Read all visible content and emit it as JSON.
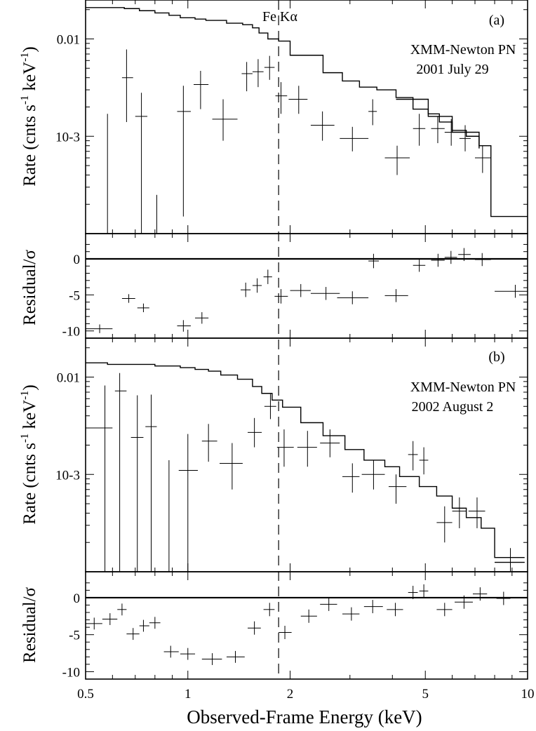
{
  "chart_data": {
    "type": "spectrum",
    "xlabel": "Observed-Frame Energy (keV)",
    "xscale": "log",
    "xlim": [
      0.5,
      10
    ],
    "xticks": [
      {
        "v": 0.5,
        "label": "0.5"
      },
      {
        "v": 1,
        "label": "1"
      },
      {
        "v": 2,
        "label": "2"
      },
      {
        "v": 5,
        "label": "5"
      },
      {
        "v": 10,
        "label": "10"
      }
    ],
    "fe_line": {
      "energy": 1.85,
      "label": "Fe Kα"
    },
    "rate_ylabel": {
      "main": "Rate (cnts s",
      "sup1": "-1",
      "mid": "  keV",
      "sup2": "-1",
      "close": ")"
    },
    "resid_ylabel": "Residual/σ",
    "rate_ylim_log10": [
      -4.0,
      -1.6
    ],
    "rate_yticks": [
      {
        "v": 0.01,
        "label": "0.01"
      },
      {
        "v": 0.001,
        "label": "10-3"
      }
    ],
    "resid_ylim": [
      -11,
      3.5
    ],
    "resid_yticks": [
      {
        "v": 0,
        "label": "0"
      },
      {
        "v": -5,
        "label": "-5"
      },
      {
        "v": -10,
        "label": "-10"
      }
    ],
    "panels": [
      {
        "id": "a",
        "panel_label": "(a)",
        "instrument": "XMM-Newton PN",
        "date": "2001 July 29",
        "model": [
          [
            0.5,
            0.021
          ],
          [
            0.65,
            0.0205
          ],
          [
            0.72,
            0.0195
          ],
          [
            0.8,
            0.0185
          ],
          [
            0.88,
            0.0175
          ],
          [
            0.95,
            0.0165
          ],
          [
            1.05,
            0.016
          ],
          [
            1.13,
            0.0155
          ],
          [
            1.3,
            0.0145
          ],
          [
            1.45,
            0.014
          ],
          [
            1.55,
            0.013
          ],
          [
            1.62,
            0.0115
          ],
          [
            1.72,
            0.01
          ],
          [
            1.85,
            0.0095
          ],
          [
            2.0,
            0.0068
          ],
          [
            2.5,
            0.0045
          ],
          [
            2.85,
            0.0037
          ],
          [
            3.2,
            0.0032
          ],
          [
            3.6,
            0.003
          ],
          [
            4.1,
            0.0025
          ],
          [
            4.6,
            0.0019
          ],
          [
            5.1,
            0.0017
          ],
          [
            5.5,
            0.0014
          ],
          [
            6.0,
            0.00115
          ],
          [
            6.6,
            0.001
          ],
          [
            7.2,
            0.0008
          ],
          [
            7.8,
            0.00015
          ],
          [
            10,
            0.00015
          ]
        ],
        "model_lower": [
          [
            4.1,
            0.0024
          ],
          [
            5.1,
            0.0016
          ],
          [
            6.0,
            0.0011
          ],
          [
            7.2,
            0.00075
          ]
        ],
        "rate_points": [
          {
            "x": 0.58,
            "xlo": 0.55,
            "xhi": 0.6,
            "y": 0.0001,
            "ylo": 0.0001,
            "yhi": 0.0017
          },
          {
            "x": 0.66,
            "xlo": 0.64,
            "xhi": 0.69,
            "y": 0.004,
            "ylo": 0.0014,
            "yhi": 0.0078
          },
          {
            "x": 0.73,
            "xlo": 0.7,
            "xhi": 0.76,
            "y": 0.0016,
            "ylo": 0.0001,
            "yhi": 0.0028
          },
          {
            "x": 0.81,
            "xlo": 0.79,
            "xhi": 0.83,
            "y": 0.0001,
            "ylo": 0.0001,
            "yhi": 0.00025
          },
          {
            "x": 0.97,
            "xlo": 0.93,
            "xhi": 1.02,
            "y": 0.0018,
            "ylo": 0.00015,
            "yhi": 0.0033
          },
          {
            "x": 1.09,
            "xlo": 1.04,
            "xhi": 1.15,
            "y": 0.0034,
            "ylo": 0.0019,
            "yhi": 0.0047
          },
          {
            "x": 1.27,
            "xlo": 1.18,
            "xhi": 1.4,
            "y": 0.0015,
            "ylo": 0.0009,
            "yhi": 0.0024
          },
          {
            "x": 1.49,
            "xlo": 1.44,
            "xhi": 1.55,
            "y": 0.0044,
            "ylo": 0.0029,
            "yhi": 0.0058
          },
          {
            "x": 1.61,
            "xlo": 1.55,
            "xhi": 1.67,
            "y": 0.0046,
            "ylo": 0.0032,
            "yhi": 0.0062
          },
          {
            "x": 1.74,
            "xlo": 1.68,
            "xhi": 1.8,
            "y": 0.0051,
            "ylo": 0.0038,
            "yhi": 0.0067
          },
          {
            "x": 1.88,
            "xlo": 1.81,
            "xhi": 1.96,
            "y": 0.0026,
            "ylo": 0.0017,
            "yhi": 0.0036
          },
          {
            "x": 2.12,
            "xlo": 1.98,
            "xhi": 2.25,
            "y": 0.0024,
            "ylo": 0.0017,
            "yhi": 0.0033
          },
          {
            "x": 2.49,
            "xlo": 2.3,
            "xhi": 2.7,
            "y": 0.0013,
            "ylo": 0.0009,
            "yhi": 0.0018
          },
          {
            "x": 3.05,
            "xlo": 2.8,
            "xhi": 3.4,
            "y": 0.00095,
            "ylo": 0.0007,
            "yhi": 0.00125
          },
          {
            "x": 3.5,
            "xlo": 3.4,
            "xhi": 3.6,
            "y": 0.0018,
            "ylo": 0.0013,
            "yhi": 0.0024
          },
          {
            "x": 4.13,
            "xlo": 3.8,
            "xhi": 4.5,
            "y": 0.0006,
            "ylo": 0.0004,
            "yhi": 0.0008
          },
          {
            "x": 4.8,
            "xlo": 4.6,
            "xhi": 5.0,
            "y": 0.0012,
            "ylo": 0.0008,
            "yhi": 0.0017
          },
          {
            "x": 5.44,
            "xlo": 5.2,
            "xhi": 5.7,
            "y": 0.0012,
            "ylo": 0.00085,
            "yhi": 0.0016
          },
          {
            "x": 5.96,
            "xlo": 5.7,
            "xhi": 6.2,
            "y": 0.0011,
            "ylo": 0.0008,
            "yhi": 0.0015
          },
          {
            "x": 6.55,
            "xlo": 6.3,
            "xhi": 6.8,
            "y": 0.00095,
            "ylo": 0.0007,
            "yhi": 0.0013
          },
          {
            "x": 7.37,
            "xlo": 7.0,
            "xhi": 7.8,
            "y": 0.0006,
            "ylo": 0.00042,
            "yhi": 0.0008
          }
        ],
        "residuals": [
          {
            "x": 0.55,
            "xlo": 0.5,
            "xhi": 0.6,
            "y": -9.7,
            "err": 0.6
          },
          {
            "x": 0.67,
            "xlo": 0.64,
            "xhi": 0.7,
            "y": -5.5,
            "err": 0.6
          },
          {
            "x": 0.74,
            "xlo": 0.71,
            "xhi": 0.77,
            "y": -6.8,
            "err": 0.6
          },
          {
            "x": 0.97,
            "xlo": 0.93,
            "xhi": 1.02,
            "y": -9.3,
            "err": 0.8
          },
          {
            "x": 1.1,
            "xlo": 1.05,
            "xhi": 1.15,
            "y": -8.2,
            "err": 0.8
          },
          {
            "x": 1.48,
            "xlo": 1.43,
            "xhi": 1.53,
            "y": -4.3,
            "err": 1.0
          },
          {
            "x": 1.6,
            "xlo": 1.55,
            "xhi": 1.65,
            "y": -3.7,
            "err": 1.0
          },
          {
            "x": 1.72,
            "xlo": 1.67,
            "xhi": 1.77,
            "y": -2.5,
            "err": 1.0
          },
          {
            "x": 1.88,
            "xlo": 1.8,
            "xhi": 1.97,
            "y": -5.2,
            "err": 1.0
          },
          {
            "x": 2.15,
            "xlo": 2.0,
            "xhi": 2.3,
            "y": -4.4,
            "err": 0.9
          },
          {
            "x": 2.55,
            "xlo": 2.3,
            "xhi": 2.8,
            "y": -4.8,
            "err": 0.9
          },
          {
            "x": 3.05,
            "xlo": 2.75,
            "xhi": 3.4,
            "y": -5.4,
            "err": 0.9
          },
          {
            "x": 3.52,
            "xlo": 3.4,
            "xhi": 3.65,
            "y": -0.3,
            "err": 1.0
          },
          {
            "x": 4.1,
            "xlo": 3.8,
            "xhi": 4.45,
            "y": -5.1,
            "err": 0.9
          },
          {
            "x": 4.8,
            "xlo": 4.6,
            "xhi": 5.0,
            "y": -0.9,
            "err": 0.9
          },
          {
            "x": 5.45,
            "xlo": 5.2,
            "xhi": 5.7,
            "y": -0.2,
            "err": 0.9
          },
          {
            "x": 5.95,
            "xlo": 5.7,
            "xhi": 6.2,
            "y": 0.2,
            "err": 0.9
          },
          {
            "x": 6.5,
            "xlo": 6.25,
            "xhi": 6.8,
            "y": 0.6,
            "err": 0.9
          },
          {
            "x": 7.35,
            "xlo": 7.0,
            "xhi": 7.8,
            "y": -0.1,
            "err": 0.9
          },
          {
            "x": 9.2,
            "xlo": 8.0,
            "xhi": 10.0,
            "y": -4.5,
            "err": 0.9
          }
        ]
      },
      {
        "id": "b",
        "panel_label": "(b)",
        "instrument": "XMM-Newton PN",
        "date": "2002 August 2",
        "model": [
          [
            0.5,
            0.014
          ],
          [
            0.58,
            0.0135
          ],
          [
            0.67,
            0.0135
          ],
          [
            0.8,
            0.013
          ],
          [
            0.95,
            0.0125
          ],
          [
            1.05,
            0.012
          ],
          [
            1.15,
            0.0115
          ],
          [
            1.25,
            0.0105
          ],
          [
            1.4,
            0.0095
          ],
          [
            1.55,
            0.008
          ],
          [
            1.65,
            0.0068
          ],
          [
            1.77,
            0.0058
          ],
          [
            1.9,
            0.0049
          ],
          [
            2.15,
            0.0034
          ],
          [
            2.5,
            0.0025
          ],
          [
            2.9,
            0.0018
          ],
          [
            3.3,
            0.0014
          ],
          [
            3.8,
            0.0012
          ],
          [
            4.2,
            0.00095
          ],
          [
            4.8,
            0.00075
          ],
          [
            5.4,
            0.0006
          ],
          [
            6.0,
            0.00045
          ],
          [
            6.6,
            0.00036
          ],
          [
            7.3,
            0.00028
          ],
          [
            8.0,
            0.00014
          ],
          [
            9.8,
            0.00014
          ]
        ],
        "model_lower": [
          [
            8.0,
            0.000125
          ],
          [
            9.8,
            0.000125
          ]
        ],
        "rate_points": [
          {
            "x": 0.57,
            "xlo": 0.5,
            "xhi": 0.6,
            "y": 0.003,
            "ylo": 0.0001,
            "yhi": 0.0082
          },
          {
            "x": 0.63,
            "xlo": 0.61,
            "xhi": 0.66,
            "y": 0.0072,
            "ylo": 0.0001,
            "yhi": 0.011
          },
          {
            "x": 0.71,
            "xlo": 0.68,
            "xhi": 0.74,
            "y": 0.0024,
            "ylo": 0.0001,
            "yhi": 0.0065
          },
          {
            "x": 0.78,
            "xlo": 0.75,
            "xhi": 0.81,
            "y": 0.0031,
            "ylo": 0.0001,
            "yhi": 0.0066
          },
          {
            "x": 0.88,
            "xlo": 0.84,
            "xhi": 0.92,
            "y": 0.0001,
            "ylo": 0.0001,
            "yhi": 0.0014
          },
          {
            "x": 1.0,
            "xlo": 0.94,
            "xhi": 1.07,
            "y": 0.0011,
            "ylo": 0.0001,
            "yhi": 0.0026
          },
          {
            "x": 1.15,
            "xlo": 1.1,
            "xhi": 1.22,
            "y": 0.0022,
            "ylo": 0.00135,
            "yhi": 0.0033
          },
          {
            "x": 1.35,
            "xlo": 1.24,
            "xhi": 1.45,
            "y": 0.0013,
            "ylo": 0.0007,
            "yhi": 0.0021
          },
          {
            "x": 1.57,
            "xlo": 1.5,
            "xhi": 1.65,
            "y": 0.0027,
            "ylo": 0.0019,
            "yhi": 0.0038
          },
          {
            "x": 1.75,
            "xlo": 1.68,
            "xhi": 1.82,
            "y": 0.005,
            "ylo": 0.0037,
            "yhi": 0.0067
          },
          {
            "x": 1.92,
            "xlo": 1.83,
            "xhi": 2.05,
            "y": 0.0019,
            "ylo": 0.0012,
            "yhi": 0.0029
          },
          {
            "x": 2.25,
            "xlo": 2.1,
            "xhi": 2.4,
            "y": 0.0019,
            "ylo": 0.0012,
            "yhi": 0.0028
          },
          {
            "x": 2.62,
            "xlo": 2.45,
            "xhi": 2.8,
            "y": 0.0021,
            "ylo": 0.0015,
            "yhi": 0.0029
          },
          {
            "x": 3.05,
            "xlo": 2.85,
            "xhi": 3.2,
            "y": 0.00095,
            "ylo": 0.00065,
            "yhi": 0.0013
          },
          {
            "x": 3.52,
            "xlo": 3.25,
            "xhi": 3.8,
            "y": 0.001,
            "ylo": 0.0007,
            "yhi": 0.0014
          },
          {
            "x": 4.1,
            "xlo": 3.9,
            "xhi": 4.4,
            "y": 0.00075,
            "ylo": 0.0005,
            "yhi": 0.001
          },
          {
            "x": 4.6,
            "xlo": 4.45,
            "xhi": 4.75,
            "y": 0.0016,
            "ylo": 0.0011,
            "yhi": 0.0022
          },
          {
            "x": 4.95,
            "xlo": 4.8,
            "xhi": 5.1,
            "y": 0.0014,
            "ylo": 0.001,
            "yhi": 0.0019
          },
          {
            "x": 5.7,
            "xlo": 5.4,
            "xhi": 6.0,
            "y": 0.00032,
            "ylo": 0.0002,
            "yhi": 0.00047
          },
          {
            "x": 6.3,
            "xlo": 6.0,
            "xhi": 6.6,
            "y": 0.00042,
            "ylo": 0.00028,
            "yhi": 0.00058
          },
          {
            "x": 7.1,
            "xlo": 6.7,
            "xhi": 7.5,
            "y": 0.00042,
            "ylo": 0.00028,
            "yhi": 0.00058
          },
          {
            "x": 8.9,
            "xlo": 8.0,
            "xhi": 9.8,
            "y": 0.000125,
            "ylo": 0.0001,
            "yhi": 0.000175
          }
        ],
        "residuals": [
          {
            "x": 0.53,
            "xlo": 0.5,
            "xhi": 0.56,
            "y": -3.5,
            "err": 0.8
          },
          {
            "x": 0.59,
            "xlo": 0.56,
            "xhi": 0.62,
            "y": -2.9,
            "err": 0.8
          },
          {
            "x": 0.64,
            "xlo": 0.62,
            "xhi": 0.66,
            "y": -1.6,
            "err": 0.8
          },
          {
            "x": 0.69,
            "xlo": 0.66,
            "xhi": 0.72,
            "y": -4.9,
            "err": 0.8
          },
          {
            "x": 0.74,
            "xlo": 0.72,
            "xhi": 0.77,
            "y": -3.8,
            "err": 0.8
          },
          {
            "x": 0.8,
            "xlo": 0.77,
            "xhi": 0.83,
            "y": -3.4,
            "err": 0.8
          },
          {
            "x": 0.89,
            "xlo": 0.85,
            "xhi": 0.94,
            "y": -7.3,
            "err": 0.8
          },
          {
            "x": 1.0,
            "xlo": 0.95,
            "xhi": 1.05,
            "y": -7.6,
            "err": 0.8
          },
          {
            "x": 1.18,
            "xlo": 1.1,
            "xhi": 1.26,
            "y": -8.3,
            "err": 0.8
          },
          {
            "x": 1.38,
            "xlo": 1.3,
            "xhi": 1.47,
            "y": -8.0,
            "err": 0.8
          },
          {
            "x": 1.57,
            "xlo": 1.5,
            "xhi": 1.64,
            "y": -4.1,
            "err": 0.9
          },
          {
            "x": 1.74,
            "xlo": 1.67,
            "xhi": 1.8,
            "y": -1.6,
            "err": 0.9
          },
          {
            "x": 1.93,
            "xlo": 1.85,
            "xhi": 2.02,
            "y": -4.7,
            "err": 0.9
          },
          {
            "x": 2.27,
            "xlo": 2.15,
            "xhi": 2.4,
            "y": -2.5,
            "err": 0.9
          },
          {
            "x": 2.6,
            "xlo": 2.45,
            "xhi": 2.75,
            "y": -0.9,
            "err": 0.9
          },
          {
            "x": 3.03,
            "xlo": 2.85,
            "xhi": 3.2,
            "y": -2.2,
            "err": 0.9
          },
          {
            "x": 3.5,
            "xlo": 3.3,
            "xhi": 3.75,
            "y": -1.2,
            "err": 0.9
          },
          {
            "x": 4.08,
            "xlo": 3.85,
            "xhi": 4.3,
            "y": -1.6,
            "err": 0.9
          },
          {
            "x": 4.6,
            "xlo": 4.45,
            "xhi": 4.75,
            "y": 0.7,
            "err": 0.9
          },
          {
            "x": 4.95,
            "xlo": 4.8,
            "xhi": 5.1,
            "y": 0.9,
            "err": 0.9
          },
          {
            "x": 5.7,
            "xlo": 5.4,
            "xhi": 6.0,
            "y": -1.6,
            "err": 0.9
          },
          {
            "x": 6.5,
            "xlo": 6.1,
            "xhi": 6.9,
            "y": -0.6,
            "err": 0.9
          },
          {
            "x": 7.25,
            "xlo": 6.9,
            "xhi": 7.6,
            "y": 0.5,
            "err": 0.9
          },
          {
            "x": 8.5,
            "xlo": 8.1,
            "xhi": 8.9,
            "y": -0.1,
            "err": 0.9
          }
        ]
      }
    ]
  }
}
